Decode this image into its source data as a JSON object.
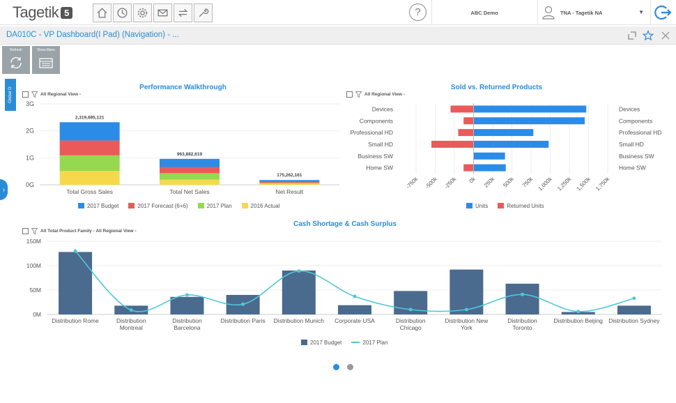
{
  "app": {
    "logo_text": "Tagetik",
    "logo_version": "5",
    "nav_icons": [
      "home-icon",
      "clock-icon",
      "gear-icon",
      "mail-icon",
      "swap-icon",
      "wrench-icon"
    ],
    "help_label": "?",
    "company": "ABC Demo",
    "user": "TNA - Tagetik NA",
    "user_caret": "▼"
  },
  "titlebar": {
    "title": "DA010C - VP Dashboard(I Pad) (Navigation) - ..."
  },
  "toolbar": {
    "refresh_label": "Refresh",
    "show_filters_label": "Show filters"
  },
  "global_tab": "Global O",
  "side_arrow": "›",
  "chart_data": [
    {
      "type": "bar",
      "stacked": true,
      "title": "Performance Walkthrough",
      "filter": "All Regional View -",
      "categories": [
        "Total Gross Sales",
        "Total Net Sales",
        "Net Result"
      ],
      "totals_labels": [
        "2,319,695,121",
        "963,882,619",
        "175,262,161"
      ],
      "series": [
        {
          "name": "2017 Budget",
          "color": "#2b8ce8",
          "values": [
            0.68,
            0.3,
            0.06
          ]
        },
        {
          "name": "2017 Forecast (6+6)",
          "color": "#ea5a5a",
          "values": [
            0.55,
            0.23,
            0.04
          ]
        },
        {
          "name": "2017 Plan",
          "color": "#96d850",
          "values": [
            0.58,
            0.24,
            0.04
          ]
        },
        {
          "name": "2016 Actual",
          "color": "#f5d94a",
          "values": [
            0.51,
            0.19,
            0.035
          ]
        }
      ],
      "yticks": [
        "0G",
        "1G",
        "2G",
        "3G"
      ],
      "ylim": [
        0,
        3
      ],
      "unit": "G",
      "legend": "bottom"
    },
    {
      "type": "bar",
      "orientation": "horizontal",
      "title": "Sold vs. Returned Products",
      "filter": "All Regional View -",
      "categories": [
        "Devices",
        "Components",
        "Professional HD",
        "Small HD",
        "Business SW",
        "Home SW"
      ],
      "series": [
        {
          "name": "Units",
          "color": "#2b8ce8",
          "values": [
            1470,
            1450,
            780,
            980,
            410,
            420
          ]
        },
        {
          "name": "Returned Units",
          "color": "#ea5a5a",
          "values": [
            -300,
            -130,
            -200,
            -550,
            0,
            -130
          ]
        }
      ],
      "xticks": [
        "-750k",
        "-500k",
        "-250k",
        "0k",
        "250k",
        "500k",
        "750k",
        "1,000k",
        "1,250k",
        "1,500k",
        "1,750k"
      ],
      "xlim": [
        -750,
        1750
      ],
      "unit": "k",
      "legend": "bottom"
    },
    {
      "type": "bar",
      "combo_line": true,
      "title": "Cash Shortage & Cash Surplus",
      "filter": "All Total Product Family - All Regional View -",
      "categories": [
        "Distribution Rome",
        "Distribution Montreal",
        "Distribution Barcelona",
        "Distribution Paris",
        "Distribution Munich",
        "Corporate USA",
        "Distribution Chicago",
        "Distribution New York",
        "Distribution Toronto",
        "Distribution Beijing",
        "Distribution Sydney"
      ],
      "category_lines": [
        [
          "Distribution Rome"
        ],
        [
          "Distribution",
          "Montreal"
        ],
        [
          "Distribution",
          "Barcelona"
        ],
        [
          "Distribution Paris"
        ],
        [
          "Distribution Munich"
        ],
        [
          "Corporate USA"
        ],
        [
          "Distribution",
          "Chicago"
        ],
        [
          "Distribution New",
          "York"
        ],
        [
          "Distribution",
          "Toronto"
        ],
        [
          "Distribution Beijing"
        ],
        [
          "Distribution Sydney"
        ]
      ],
      "series": [
        {
          "name": "2017 Budget",
          "type": "bar",
          "color": "#4a6a8e",
          "values": [
            128,
            18,
            36,
            40,
            90,
            19,
            48,
            92,
            63,
            5,
            18
          ]
        },
        {
          "name": "2017 Plan",
          "type": "line",
          "color": "#4fc8d8",
          "values": [
            130,
            9,
            40,
            21,
            89,
            37,
            10,
            10,
            41,
            6,
            33
          ]
        }
      ],
      "yticks": [
        "0M",
        "50M",
        "100M",
        "150M"
      ],
      "ylim": [
        0,
        150
      ],
      "unit": "M",
      "legend": "bottom"
    }
  ],
  "pager": {
    "pages": 2,
    "current": 1
  }
}
